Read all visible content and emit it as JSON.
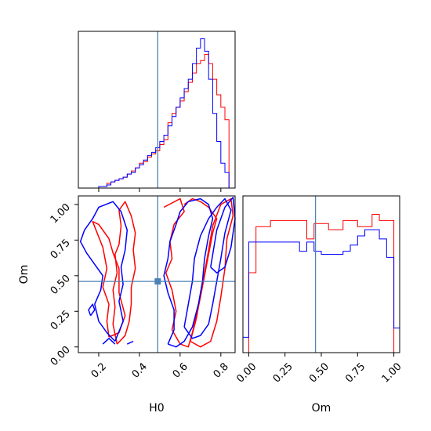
{
  "chart_data": {
    "type": "corner",
    "parameters": [
      "H0",
      "Om"
    ],
    "truth": {
      "H0": 0.49,
      "Om": 0.46
    },
    "colors": {
      "series_a": "#ff0000",
      "series_b": "#0000ff",
      "truth": "#4c82b4"
    },
    "hist_H0": {
      "type": "step",
      "xlim": [
        0.1,
        0.87
      ],
      "xticks": [
        0.2,
        0.4,
        0.6,
        0.8
      ],
      "bins": [
        0.1,
        0.12,
        0.14,
        0.16,
        0.18,
        0.2,
        0.22,
        0.24,
        0.26,
        0.28,
        0.3,
        0.32,
        0.34,
        0.36,
        0.38,
        0.4,
        0.42,
        0.44,
        0.46,
        0.48,
        0.5,
        0.52,
        0.54,
        0.56,
        0.58,
        0.6,
        0.62,
        0.64,
        0.66,
        0.68,
        0.7,
        0.72,
        0.74,
        0.76,
        0.78,
        0.8,
        0.82,
        0.84
      ],
      "series": [
        {
          "values": [
            0,
            0,
            0,
            0,
            0,
            1,
            1,
            3,
            4,
            5,
            6,
            7,
            9,
            11,
            13,
            16,
            17,
            20,
            22,
            24,
            28,
            31,
            42,
            48,
            52,
            56,
            62,
            68,
            74,
            80,
            82,
            86,
            80,
            70,
            60,
            52,
            44
          ]
        },
        {
          "values": [
            0,
            0,
            0,
            0,
            0,
            1,
            1,
            2,
            4,
            5,
            6,
            7,
            9,
            10,
            13,
            15,
            18,
            21,
            23,
            26,
            30,
            34,
            40,
            46,
            52,
            58,
            64,
            70,
            80,
            90,
            96,
            88,
            70,
            48,
            30,
            16,
            10
          ]
        }
      ]
    },
    "hist_Om": {
      "type": "step",
      "xlim": [
        -0.04,
        1.04
      ],
      "xticks": [
        0.0,
        0.25,
        0.5,
        0.75,
        1.0
      ],
      "xticklabels": [
        "0.00",
        "0.25",
        "0.50",
        "0.75",
        "1.00"
      ],
      "bins": [
        -0.04,
        0.0,
        0.05,
        0.1,
        0.15,
        0.2,
        0.25,
        0.3,
        0.35,
        0.4,
        0.45,
        0.5,
        0.55,
        0.6,
        0.65,
        0.7,
        0.75,
        0.8,
        0.85,
        0.9,
        0.95,
        1.0,
        1.04
      ],
      "series": [
        {
          "values": [
            0,
            0.52,
            0.82,
            0.82,
            0.86,
            0.86,
            0.86,
            0.86,
            0.86,
            0.74,
            0.84,
            0.84,
            0.8,
            0.8,
            0.86,
            0.86,
            0.82,
            0.82,
            0.9,
            0.86,
            0.86,
            0
          ]
        },
        {
          "values": [
            0.1,
            0.72,
            0.72,
            0.72,
            0.72,
            0.72,
            0.72,
            0.72,
            0.66,
            0.72,
            0.66,
            0.64,
            0.64,
            0.64,
            0.66,
            0.7,
            0.76,
            0.8,
            0.8,
            0.74,
            0.62,
            0.16
          ]
        }
      ]
    },
    "joint": {
      "type": "contour",
      "xlabel": "H0",
      "ylabel": "Om",
      "xlim": [
        0.1,
        0.87
      ],
      "ylim": [
        -0.04,
        1.06
      ],
      "xticks": [
        0.2,
        0.4,
        0.6,
        0.8
      ],
      "yticks": [
        0.0,
        0.25,
        0.5,
        0.75,
        1.0
      ],
      "yticklabels": [
        "0.00",
        "0.25",
        "0.50",
        "0.75",
        "1.00"
      ],
      "series": [
        {
          "contours": [
            [
              [
                0.29,
                0.02
              ],
              [
                0.33,
                0.08
              ],
              [
                0.35,
                0.18
              ],
              [
                0.36,
                0.3
              ],
              [
                0.36,
                0.42
              ],
              [
                0.38,
                0.55
              ],
              [
                0.37,
                0.68
              ],
              [
                0.38,
                0.8
              ],
              [
                0.36,
                0.92
              ],
              [
                0.33,
                1.02
              ],
              [
                0.3,
                0.96
              ],
              [
                0.31,
                0.85
              ],
              [
                0.3,
                0.72
              ],
              [
                0.28,
                0.65
              ],
              [
                0.29,
                0.52
              ],
              [
                0.27,
                0.4
              ],
              [
                0.28,
                0.28
              ],
              [
                0.27,
                0.16
              ],
              [
                0.29,
                0.02
              ]
            ],
            [
              [
                0.25,
                0.07
              ],
              [
                0.3,
                0.1
              ],
              [
                0.33,
                0.22
              ],
              [
                0.3,
                0.38
              ],
              [
                0.3,
                0.55
              ],
              [
                0.27,
                0.66
              ],
              [
                0.25,
                0.76
              ],
              [
                0.2,
                0.86
              ],
              [
                0.17,
                0.88
              ],
              [
                0.22,
                0.7
              ],
              [
                0.24,
                0.55
              ],
              [
                0.22,
                0.42
              ],
              [
                0.25,
                0.3
              ],
              [
                0.24,
                0.18
              ],
              [
                0.25,
                0.07
              ]
            ],
            [
              [
                0.52,
                0.98
              ],
              [
                0.6,
                1.04
              ],
              [
                0.62,
                0.95
              ],
              [
                0.57,
                0.86
              ],
              [
                0.55,
                0.74
              ],
              [
                0.56,
                0.62
              ],
              [
                0.53,
                0.52
              ],
              [
                0.56,
                0.4
              ],
              [
                0.58,
                0.25
              ],
              [
                0.56,
                0.12
              ],
              [
                0.6,
                0.02
              ],
              [
                0.64,
                0.0
              ],
              [
                0.66,
                0.1
              ],
              [
                0.68,
                0.22
              ],
              [
                0.7,
                0.35
              ],
              [
                0.72,
                0.5
              ],
              [
                0.74,
                0.65
              ],
              [
                0.76,
                0.8
              ],
              [
                0.78,
                0.9
              ],
              [
                0.74,
                0.98
              ],
              [
                0.7,
                1.02
              ],
              [
                0.66,
                1.04
              ],
              [
                0.62,
                1.0
              ]
            ],
            [
              [
                0.65,
                0.04
              ],
              [
                0.68,
                0.2
              ],
              [
                0.7,
                0.36
              ],
              [
                0.72,
                0.52
              ],
              [
                0.74,
                0.68
              ],
              [
                0.76,
                0.85
              ],
              [
                0.8,
                1.0
              ],
              [
                0.85,
                1.04
              ],
              [
                0.86,
                0.92
              ],
              [
                0.83,
                0.76
              ],
              [
                0.82,
                0.55
              ],
              [
                0.8,
                0.35
              ],
              [
                0.78,
                0.18
              ],
              [
                0.75,
                0.04
              ],
              [
                0.7,
                0.0
              ],
              [
                0.65,
                0.04
              ]
            ]
          ]
        },
        {
          "contours": [
            [
              [
                0.28,
                0.04
              ],
              [
                0.32,
                0.18
              ],
              [
                0.3,
                0.32
              ],
              [
                0.32,
                0.44
              ],
              [
                0.31,
                0.56
              ],
              [
                0.33,
                0.68
              ],
              [
                0.34,
                0.82
              ],
              [
                0.31,
                0.95
              ],
              [
                0.27,
                1.02
              ],
              [
                0.2,
                0.98
              ],
              [
                0.17,
                0.9
              ],
              [
                0.13,
                0.82
              ],
              [
                0.11,
                0.74
              ],
              [
                0.14,
                0.66
              ],
              [
                0.18,
                0.58
              ],
              [
                0.22,
                0.5
              ],
              [
                0.21,
                0.4
              ],
              [
                0.18,
                0.3
              ],
              [
                0.2,
                0.18
              ],
              [
                0.24,
                0.1
              ],
              [
                0.28,
                0.04
              ]
            ],
            [
              [
                0.54,
                0.02
              ],
              [
                0.57,
                0.12
              ],
              [
                0.57,
                0.26
              ],
              [
                0.54,
                0.38
              ],
              [
                0.52,
                0.5
              ],
              [
                0.54,
                0.62
              ],
              [
                0.55,
                0.74
              ],
              [
                0.58,
                0.86
              ],
              [
                0.6,
                0.95
              ],
              [
                0.64,
                1.02
              ],
              [
                0.7,
                1.04
              ],
              [
                0.74,
                1.0
              ],
              [
                0.76,
                0.9
              ],
              [
                0.74,
                0.78
              ],
              [
                0.72,
                0.62
              ],
              [
                0.71,
                0.46
              ],
              [
                0.69,
                0.3
              ],
              [
                0.66,
                0.14
              ],
              [
                0.62,
                0.04
              ],
              [
                0.58,
                0.0
              ],
              [
                0.54,
                0.02
              ]
            ],
            [
              [
                0.62,
                0.14
              ],
              [
                0.64,
                0.3
              ],
              [
                0.66,
                0.46
              ],
              [
                0.67,
                0.62
              ],
              [
                0.7,
                0.78
              ],
              [
                0.74,
                0.9
              ],
              [
                0.78,
                0.98
              ],
              [
                0.82,
                1.04
              ],
              [
                0.85,
                0.96
              ],
              [
                0.82,
                0.8
              ],
              [
                0.8,
                0.62
              ],
              [
                0.78,
                0.46
              ],
              [
                0.76,
                0.3
              ],
              [
                0.74,
                0.16
              ],
              [
                0.7,
                0.08
              ],
              [
                0.66,
                0.06
              ],
              [
                0.62,
                0.14
              ]
            ],
            [
              [
                0.75,
                0.56
              ],
              [
                0.78,
                0.82
              ],
              [
                0.82,
                0.98
              ],
              [
                0.86,
                1.05
              ],
              [
                0.87,
                0.9
              ],
              [
                0.85,
                0.7
              ],
              [
                0.82,
                0.56
              ],
              [
                0.78,
                0.52
              ],
              [
                0.75,
                0.56
              ]
            ],
            [
              [
                0.16,
                0.22
              ],
              [
                0.18,
                0.26
              ],
              [
                0.17,
                0.3
              ],
              [
                0.15,
                0.26
              ],
              [
                0.16,
                0.22
              ]
            ],
            [
              [
                0.22,
                0.02
              ],
              [
                0.25,
                0.06
              ],
              [
                0.28,
                0.02
              ]
            ],
            [
              [
                0.34,
                0.02
              ],
              [
                0.37,
                0.04
              ]
            ]
          ]
        }
      ]
    }
  }
}
